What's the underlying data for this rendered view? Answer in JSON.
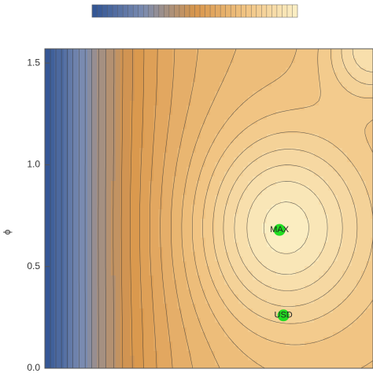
{
  "chart_data": {
    "type": "contour",
    "ylabel": "ϕ",
    "xlim": [
      0,
      1
    ],
    "ylim": [
      0,
      1.57
    ],
    "yticks": [
      {
        "value": 0,
        "label": "0.0"
      },
      0.5,
      {
        "value": 1,
        "label": "1.0"
      },
      1.5
    ],
    "colormap": [
      "#2f5394",
      "#7a8bb0",
      "#d8954a",
      "#f1c483",
      "#fcf0c6"
    ],
    "points": [
      {
        "label": "MAX",
        "x": 0.715,
        "y": 0.68
      },
      {
        "label": "USD",
        "x": 0.727,
        "y": 0.26
      }
    ],
    "point_color": "#22dd22"
  }
}
